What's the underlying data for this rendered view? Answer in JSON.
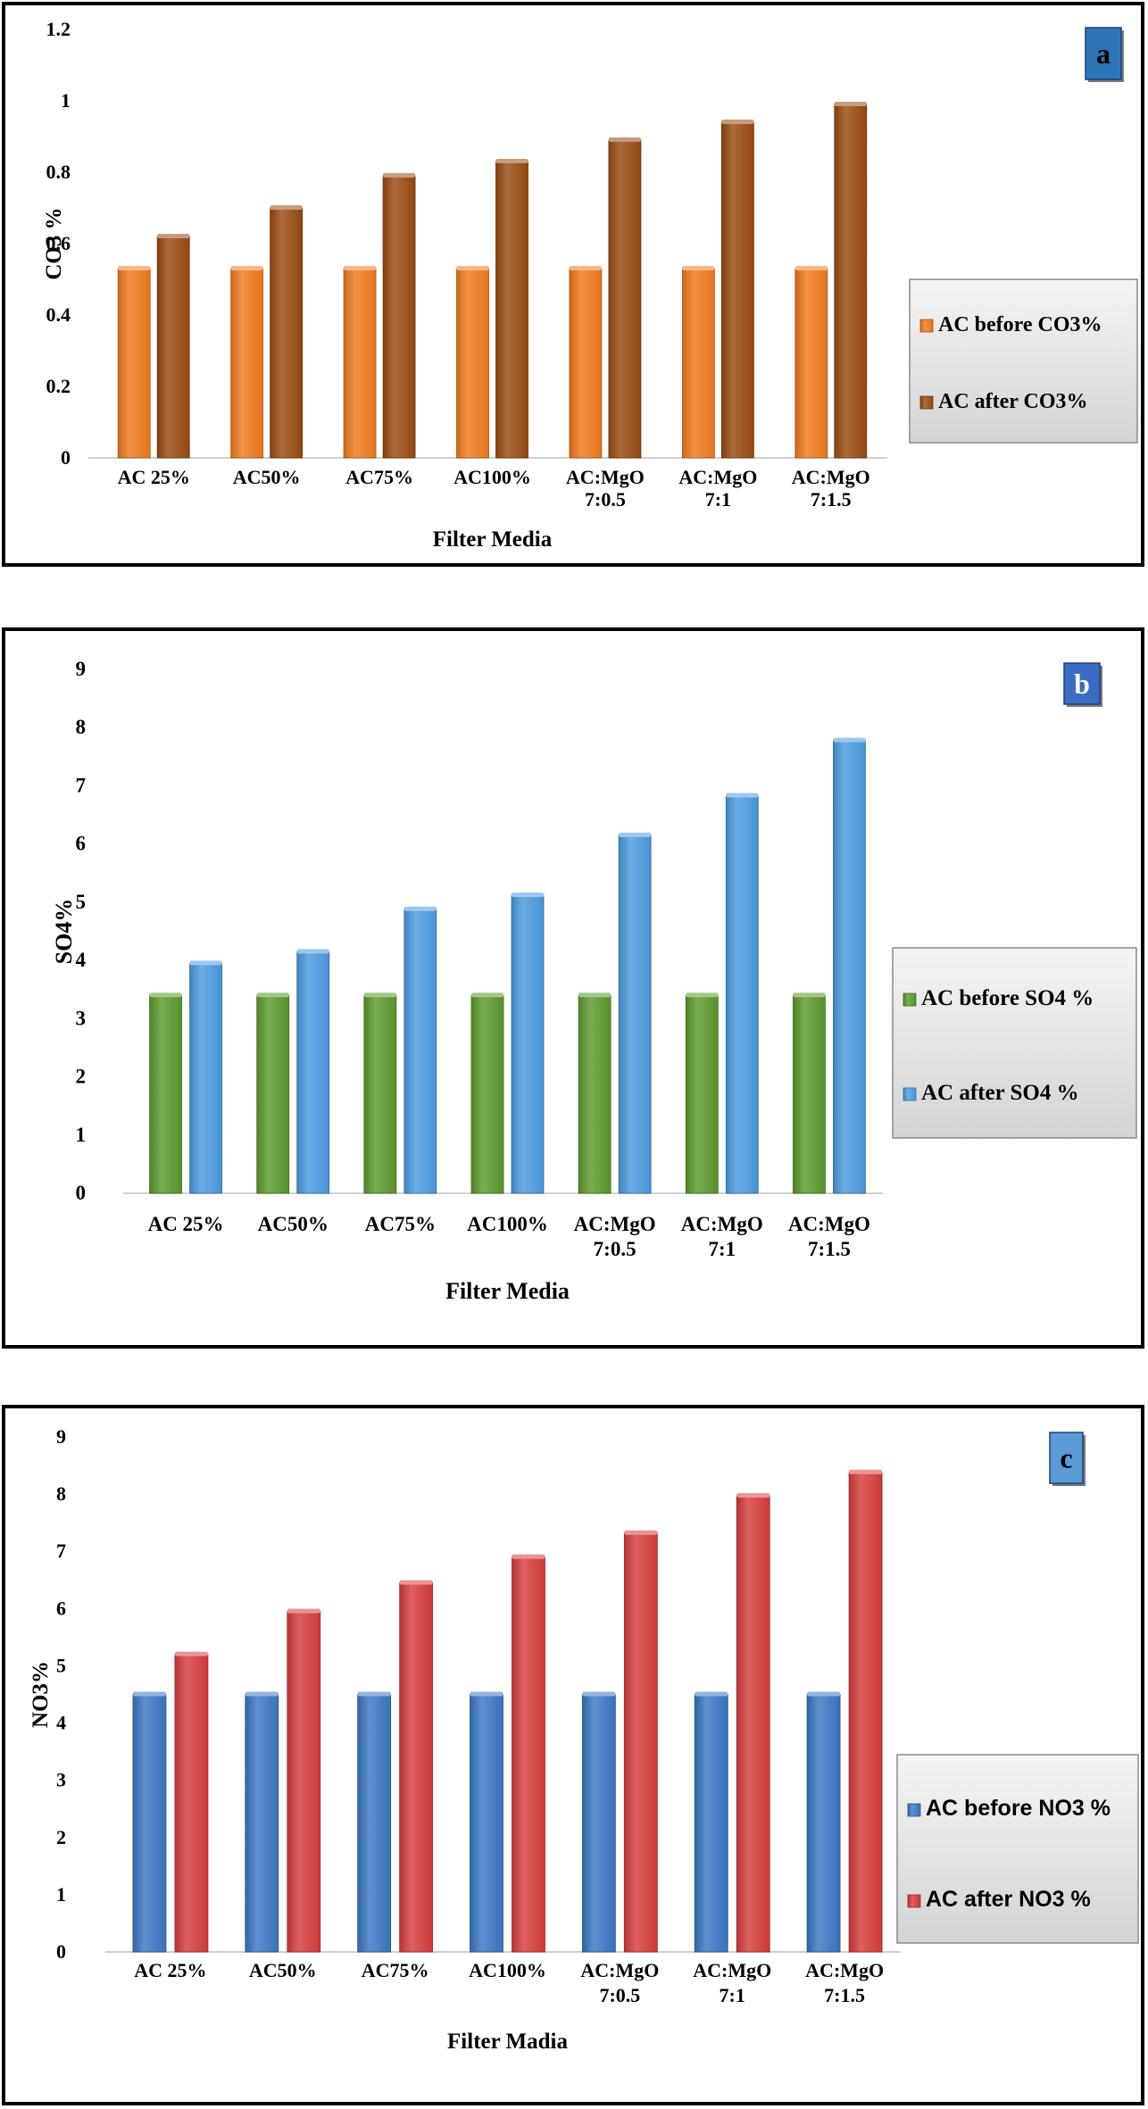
{
  "charts": [
    {
      "panel_label": "a",
      "label_style": {
        "fill": "#2e75b6",
        "text": "#000000"
      },
      "legend_font": "serif",
      "colors": {
        "before": "#f07a1c",
        "after": "#9a4a10"
      },
      "chart_data": {
        "type": "bar",
        "categories": [
          [
            "AC 25%"
          ],
          [
            "AC50%"
          ],
          [
            "AC75%"
          ],
          [
            "AC100%"
          ],
          [
            "AC:MgO",
            "7:0.5"
          ],
          [
            "AC:MgO",
            "7:1"
          ],
          [
            "AC:MgO",
            "7:1.5"
          ]
        ],
        "series": [
          {
            "name": "AC before CO3%",
            "values": [
              0.53,
              0.53,
              0.53,
              0.53,
              0.53,
              0.53,
              0.53
            ]
          },
          {
            "name": "AC after CO3%",
            "values": [
              0.62,
              0.7,
              0.79,
              0.83,
              0.89,
              0.94,
              0.99
            ]
          }
        ],
        "ylim": [
          0,
          1.2
        ],
        "yticks": [
          "0",
          "0.2",
          "0.4",
          "0.6",
          "0.8",
          "1",
          "1.2"
        ],
        "xlabel": "Filter Media",
        "ylabel": "CO3 %",
        "legend_position": "right"
      }
    },
    {
      "panel_label": "b",
      "label_style": {
        "fill": "#3a6cc4",
        "text": "#ffffff"
      },
      "legend_font": "serif",
      "colors": {
        "before": "#5c9a2c",
        "after": "#4b9be0"
      },
      "chart_data": {
        "type": "bar",
        "categories": [
          [
            "AC 25%"
          ],
          [
            "AC50%"
          ],
          [
            "AC75%"
          ],
          [
            "AC100%"
          ],
          [
            "AC:MgO",
            "7:0.5"
          ],
          [
            "AC:MgO",
            "7:1"
          ],
          [
            "AC:MgO",
            "7:1.5"
          ]
        ],
        "series": [
          {
            "name": "AC before SO4 %",
            "values": [
              3.4,
              3.4,
              3.4,
              3.4,
              3.4,
              3.4,
              3.4
            ]
          },
          {
            "name": "AC after SO4 %",
            "values": [
              3.95,
              4.15,
              4.88,
              5.12,
              6.15,
              6.83,
              7.78
            ]
          }
        ],
        "ylim": [
          0,
          9
        ],
        "yticks": [
          "0",
          "1",
          "2",
          "3",
          "4",
          "5",
          "6",
          "7",
          "8",
          "9"
        ],
        "xlabel": "Filter Media",
        "ylabel": "SO4%",
        "legend_position": "right"
      }
    },
    {
      "panel_label": "c",
      "label_style": {
        "fill": "#5b9bd5",
        "text": "#000000"
      },
      "legend_font": "sans",
      "colors": {
        "before": "#3b78c4",
        "after": "#d83c3c"
      },
      "chart_data": {
        "type": "bar",
        "categories": [
          [
            "AC 25%"
          ],
          [
            "AC50%"
          ],
          [
            "AC75%"
          ],
          [
            "AC100%"
          ],
          [
            "AC:MgO",
            "7:0.5"
          ],
          [
            "AC:MgO",
            "7:1"
          ],
          [
            "AC:MgO",
            "7:1.5"
          ]
        ],
        "series": [
          {
            "name": "AC before NO3 %",
            "values": [
              4.5,
              4.5,
              4.5,
              4.5,
              4.5,
              4.5,
              4.5
            ]
          },
          {
            "name": "AC after NO3 %",
            "values": [
              5.2,
              5.95,
              6.45,
              6.9,
              7.32,
              7.97,
              8.38
            ]
          }
        ],
        "ylim": [
          0,
          9
        ],
        "yticks": [
          "0",
          "1",
          "2",
          "3",
          "4",
          "5",
          "6",
          "7",
          "8",
          "9"
        ],
        "xlabel": "Filter Madia",
        "ylabel": "NO3%",
        "legend_position": "right"
      }
    }
  ]
}
